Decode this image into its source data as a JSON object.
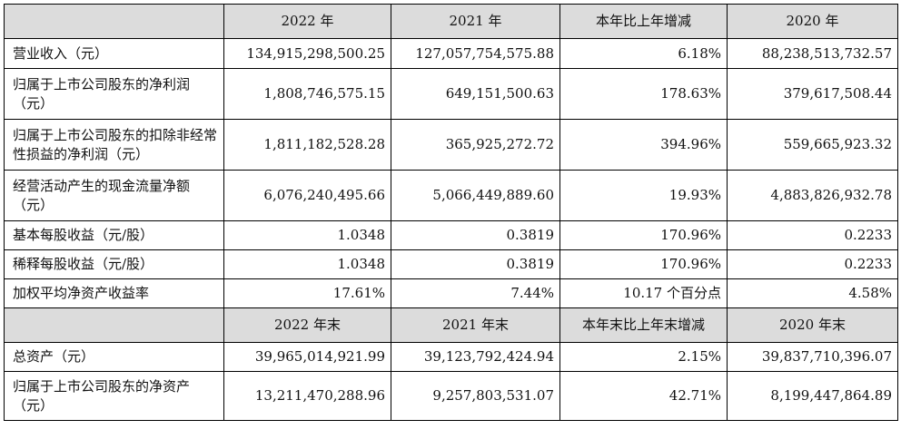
{
  "header1": {
    "blank": "",
    "col1": "2022 年",
    "col2": "2021 年",
    "col3": "本年比上年增减",
    "col4": "2020 年"
  },
  "rows1": [
    {
      "label": "营业收入（元）",
      "v2022": "134,915,298,500.25",
      "v2021": "127,057,754,575.88",
      "change": "6.18%",
      "v2020": "88,238,513,732.57"
    },
    {
      "label": "归属于上市公司股东的净利润（元）",
      "v2022": "1,808,746,575.15",
      "v2021": "649,151,500.63",
      "change": "178.63%",
      "v2020": "379,617,508.44"
    },
    {
      "label": "归属于上市公司股东的扣除非经常性损益的净利润（元）",
      "v2022": "1,811,182,528.28",
      "v2021": "365,925,272.72",
      "change": "394.96%",
      "v2020": "559,665,923.32"
    },
    {
      "label": "经营活动产生的现金流量净额（元）",
      "v2022": "6,076,240,495.66",
      "v2021": "5,066,449,889.60",
      "change": "19.93%",
      "v2020": "4,883,826,932.78"
    },
    {
      "label": "基本每股收益（元/股）",
      "v2022": "1.0348",
      "v2021": "0.3819",
      "change": "170.96%",
      "v2020": "0.2233"
    },
    {
      "label": "稀释每股收益（元/股）",
      "v2022": "1.0348",
      "v2021": "0.3819",
      "change": "170.96%",
      "v2020": "0.2233"
    },
    {
      "label": "加权平均净资产收益率",
      "v2022": "17.61%",
      "v2021": "7.44%",
      "change": "10.17 个百分点",
      "v2020": "4.58%"
    }
  ],
  "header2": {
    "blank": "",
    "col1": "2022 年末",
    "col2": "2021 年末",
    "col3": "本年末比上年末增减",
    "col4": "2020 年末"
  },
  "rows2": [
    {
      "label": "总资产（元）",
      "v2022": "39,965,014,921.99",
      "v2021": "39,123,792,424.94",
      "change": "2.15%",
      "v2020": "39,837,710,396.07"
    },
    {
      "label": "归属于上市公司股东的净资产（元）",
      "v2022": "13,211,470,288.96",
      "v2021": "9,257,803,531.07",
      "change": "42.71%",
      "v2020": "8,199,447,864.89"
    }
  ]
}
